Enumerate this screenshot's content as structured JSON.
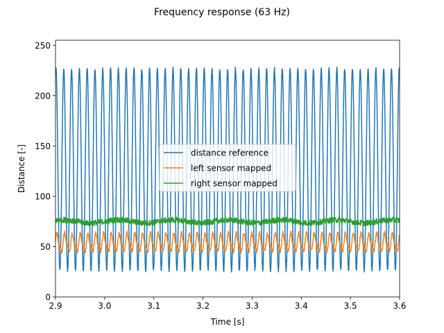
{
  "chart_data": {
    "type": "line",
    "title": "Frequency response (63 Hz)",
    "xlabel": "Time [s]",
    "ylabel": "Distance [-]",
    "xlim": [
      2.9,
      3.6
    ],
    "ylim": [
      0,
      255
    ],
    "xticks": [
      2.9,
      3.0,
      3.1,
      3.2,
      3.3,
      3.4,
      3.5,
      3.6
    ],
    "xtick_labels": [
      "2.9",
      "3.0",
      "3.1",
      "3.2",
      "3.3",
      "3.4",
      "3.5",
      "3.6"
    ],
    "yticks": [
      0,
      50,
      100,
      150,
      200,
      250
    ],
    "ytick_labels": [
      "0",
      "50",
      "100",
      "150",
      "200",
      "250"
    ],
    "grid": false,
    "legend_position": "center",
    "series": [
      {
        "name": "distance reference",
        "color": "#1f77b4",
        "frequency_hz": 63,
        "peak": 227,
        "trough": 26,
        "x_start": 2.9,
        "x_end": 3.6
      },
      {
        "name": "left sensor mapped",
        "color": "#ff7f0e",
        "frequency_hz": 63,
        "peak": 64,
        "trough": 43,
        "x_start": 2.9,
        "x_end": 3.6
      },
      {
        "name": "right sensor mapped",
        "color": "#2ca02c",
        "mean": 75,
        "noise_range": [
          72,
          79
        ],
        "x_start": 2.9,
        "x_end": 3.6
      }
    ]
  }
}
